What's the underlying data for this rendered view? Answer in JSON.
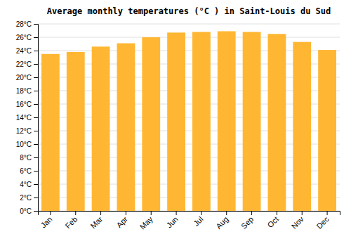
{
  "chart_data": {
    "type": "bar",
    "title": "Average monthly temperatures (°C ) in Saint-Louis du Sud",
    "categories": [
      "Jan",
      "Feb",
      "Mar",
      "Apr",
      "May",
      "Jun",
      "Jul",
      "Aug",
      "Sep",
      "Oct",
      "Nov",
      "Dec"
    ],
    "values": [
      23.5,
      23.8,
      24.6,
      25.1,
      26.0,
      26.7,
      26.8,
      26.9,
      26.8,
      26.5,
      25.3,
      24.1
    ],
    "color": "#FFB733",
    "ylim": [
      0,
      28
    ],
    "yticks": [
      {
        "value": 0,
        "label": "0°C"
      },
      {
        "value": 2,
        "label": "2°C"
      },
      {
        "value": 4,
        "label": "4°C"
      },
      {
        "value": 6,
        "label": "6°C"
      },
      {
        "value": 8,
        "label": "8°C"
      },
      {
        "value": 10,
        "label": "10°C"
      },
      {
        "value": 12,
        "label": "12°C"
      },
      {
        "value": 14,
        "label": "14°C"
      },
      {
        "value": 16,
        "label": "16°C"
      },
      {
        "value": 18,
        "label": "18°C"
      },
      {
        "value": 20,
        "label": "20°C"
      },
      {
        "value": 22,
        "label": "22°C"
      },
      {
        "value": 24,
        "label": "24°C"
      },
      {
        "value": 26,
        "label": "26°C"
      },
      {
        "value": 28,
        "label": "28°C"
      }
    ],
    "grid": true
  }
}
